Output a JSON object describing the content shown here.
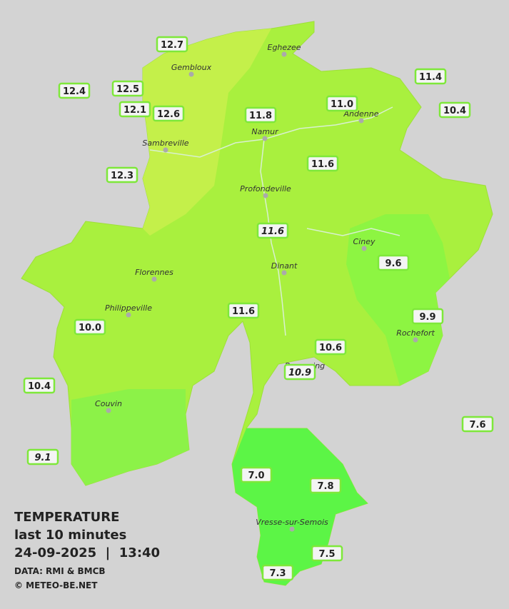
{
  "legend": {
    "title": "TEMPERATURE",
    "period": "last 10 minutes",
    "datetime": "24-09-2025  |  13:40",
    "source": "DATA: RMI & BMCB",
    "copyright": "© METEO-BE.NET"
  },
  "cities": [
    "Eghezee",
    "Gembloux",
    "Andenne",
    "Namur",
    "Sambreville",
    "Profondeville",
    "Ciney",
    "Dinant",
    "Florennes",
    "Philippeville",
    "Rochefort",
    "Beauraing",
    "Couvin",
    "Vresse-sur-Semois"
  ],
  "stations": [
    "12.7",
    "12.4",
    "12.5",
    "12.1",
    "12.6",
    "11.8",
    "11.0",
    "11.4",
    "10.4",
    "12.3",
    "11.6",
    "11.6",
    "9.6",
    "11.6",
    "9.9",
    "10.0",
    "10.6",
    "10.9",
    "10.4",
    "7.6",
    "9.1",
    "7.0",
    "7.8",
    "7.5",
    "7.3"
  ]
}
